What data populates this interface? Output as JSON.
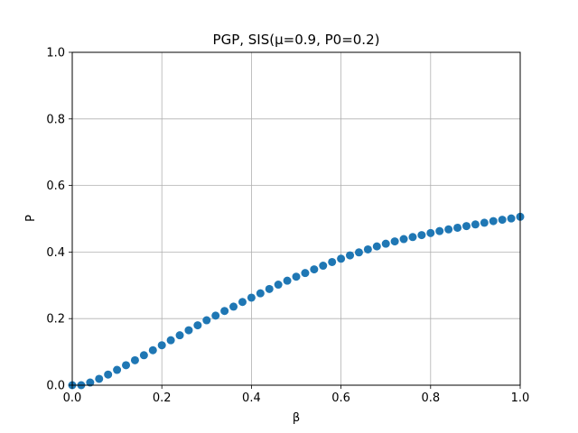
{
  "chart_data": {
    "type": "scatter",
    "title": "PGP, SIS(μ=0.9, P0=0.2)",
    "xlabel": "β",
    "ylabel": "P",
    "xlim": [
      0,
      1
    ],
    "ylim": [
      0,
      1
    ],
    "grid": true,
    "x_ticks": [
      "0.0",
      "0.2",
      "0.4",
      "0.6",
      "0.8",
      "1.0"
    ],
    "y_ticks": [
      "0.0",
      "0.2",
      "0.4",
      "0.6",
      "0.8",
      "1.0"
    ],
    "marker_color": "#1f77b4",
    "marker": "circle",
    "series": [
      {
        "x": [
          0.0,
          0.02,
          0.04,
          0.06,
          0.08,
          0.1,
          0.12,
          0.14,
          0.16,
          0.18,
          0.2,
          0.22,
          0.24,
          0.26,
          0.28,
          0.3,
          0.32,
          0.34,
          0.36,
          0.38,
          0.4,
          0.42,
          0.44,
          0.46,
          0.48,
          0.5,
          0.52,
          0.54,
          0.56,
          0.58,
          0.6,
          0.62,
          0.64,
          0.66,
          0.68,
          0.7,
          0.72,
          0.74,
          0.76,
          0.78,
          0.8,
          0.82,
          0.84,
          0.86,
          0.88,
          0.9,
          0.92,
          0.94,
          0.96,
          0.98,
          1.0
        ],
        "y": [
          0.0,
          0.0,
          0.008,
          0.019,
          0.032,
          0.046,
          0.06,
          0.075,
          0.09,
          0.105,
          0.12,
          0.135,
          0.15,
          0.165,
          0.18,
          0.195,
          0.209,
          0.223,
          0.236,
          0.25,
          0.263,
          0.276,
          0.289,
          0.302,
          0.314,
          0.326,
          0.337,
          0.348,
          0.359,
          0.37,
          0.38,
          0.39,
          0.399,
          0.408,
          0.417,
          0.425,
          0.432,
          0.439,
          0.445,
          0.451,
          0.457,
          0.463,
          0.468,
          0.473,
          0.478,
          0.483,
          0.488,
          0.493,
          0.497,
          0.501,
          0.506
        ]
      }
    ]
  }
}
